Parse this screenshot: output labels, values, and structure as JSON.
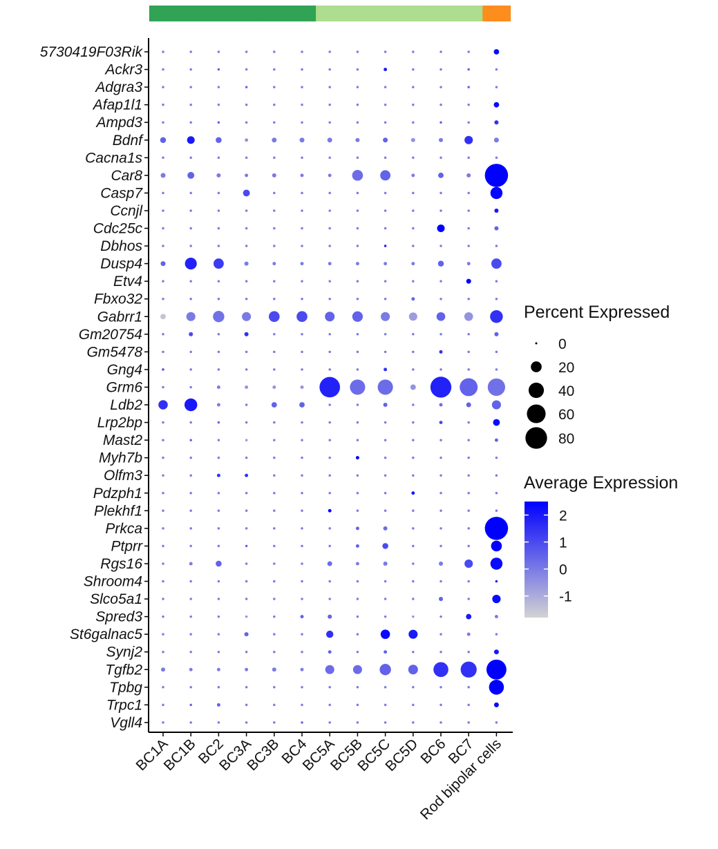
{
  "chart_data": {
    "type": "dotplot",
    "title": "",
    "xlabel": "",
    "ylabel": "",
    "categories": [
      "BC1A",
      "BC1B",
      "BC2",
      "BC3A",
      "BC3B",
      "BC4",
      "BC5A",
      "BC5B",
      "BC5C",
      "BC5D",
      "BC6",
      "BC7",
      "Rod bipolar cells"
    ],
    "genes": [
      "5730419F03Rik",
      "Ackr3",
      "Adgra3",
      "Afap1l1",
      "Ampd3",
      "Bdnf",
      "Cacna1s",
      "Car8",
      "Casp7",
      "Ccnjl",
      "Cdc25c",
      "Dbhos",
      "Dusp4",
      "Etv4",
      "Fbxo32",
      "Gabrr1",
      "Gm20754",
      "Gm5478",
      "Gng4",
      "Grm6",
      "Ldb2",
      "Lrp2bp",
      "Mast2",
      "Myh7b",
      "Olfm3",
      "Pdzph1",
      "Plekhf1",
      "Prkca",
      "Ptprr",
      "Rgs16",
      "Shroom4",
      "Slco5a1",
      "Spred3",
      "St6galnac5",
      "Synj2",
      "Tgfb2",
      "Tpbg",
      "Trpc1",
      "Vgll4"
    ],
    "group_bar": [
      {
        "color": "#31a354",
        "count": 6
      },
      {
        "color": "#addd8e",
        "count": 6
      },
      {
        "color": "#fd8d1c",
        "count": 1
      }
    ],
    "percent_expressed": [
      [
        1,
        1,
        1,
        1,
        1,
        1,
        1,
        1,
        1,
        1,
        1,
        1,
        5
      ],
      [
        1,
        1,
        1,
        1,
        1,
        1,
        1,
        1,
        2,
        1,
        1,
        1,
        1
      ],
      [
        1,
        1,
        1,
        1,
        1,
        1,
        1,
        1,
        1,
        1,
        1,
        1,
        1
      ],
      [
        1,
        1,
        1,
        1,
        1,
        1,
        1,
        1,
        1,
        1,
        1,
        1,
        5
      ],
      [
        1,
        1,
        1,
        1,
        1,
        1,
        1,
        1,
        1,
        1,
        1,
        1,
        3
      ],
      [
        6,
        10,
        6,
        2,
        4,
        4,
        4,
        3,
        4,
        3,
        3,
        12,
        4
      ],
      [
        1,
        1,
        1,
        1,
        1,
        1,
        1,
        1,
        1,
        1,
        1,
        1,
        1
      ],
      [
        4,
        8,
        3,
        2,
        3,
        2,
        2,
        20,
        18,
        2,
        5,
        3,
        92
      ],
      [
        1,
        1,
        1,
        8,
        1,
        1,
        1,
        1,
        1,
        1,
        1,
        1,
        25
      ],
      [
        1,
        1,
        1,
        1,
        1,
        1,
        1,
        1,
        1,
        1,
        1,
        1,
        3
      ],
      [
        1,
        1,
        1,
        1,
        1,
        1,
        1,
        1,
        1,
        1,
        10,
        1,
        3
      ],
      [
        1,
        1,
        1,
        1,
        1,
        1,
        1,
        1,
        1,
        1,
        1,
        1,
        1
      ],
      [
        4,
        24,
        18,
        3,
        2,
        2,
        2,
        2,
        2,
        2,
        6,
        2,
        18
      ],
      [
        1,
        1,
        1,
        1,
        1,
        1,
        1,
        1,
        1,
        1,
        1,
        4,
        1
      ],
      [
        1,
        1,
        1,
        1,
        1,
        1,
        1,
        1,
        1,
        2,
        1,
        1,
        1
      ],
      [
        5,
        14,
        22,
        14,
        20,
        20,
        16,
        19,
        14,
        12,
        13,
        13,
        28
      ],
      [
        1,
        3,
        1,
        3,
        1,
        1,
        1,
        1,
        1,
        1,
        1,
        1,
        3
      ],
      [
        1,
        1,
        1,
        1,
        1,
        1,
        1,
        1,
        1,
        1,
        2,
        1,
        1
      ],
      [
        1,
        1,
        1,
        1,
        1,
        1,
        1,
        1,
        2,
        1,
        1,
        1,
        1
      ],
      [
        1,
        1,
        2,
        2,
        2,
        2,
        72,
        40,
        40,
        5,
        75,
        55,
        52
      ],
      [
        15,
        28,
        2,
        1,
        5,
        5,
        1,
        1,
        3,
        1,
        2,
        4,
        14
      ],
      [
        1,
        1,
        1,
        1,
        1,
        1,
        1,
        1,
        1,
        1,
        2,
        1,
        8
      ],
      [
        1,
        1,
        1,
        1,
        1,
        1,
        1,
        1,
        1,
        1,
        1,
        1,
        2
      ],
      [
        1,
        1,
        1,
        1,
        1,
        1,
        1,
        2,
        1,
        1,
        1,
        1,
        1
      ],
      [
        1,
        1,
        2,
        2,
        1,
        1,
        1,
        1,
        1,
        1,
        1,
        1,
        1
      ],
      [
        1,
        1,
        1,
        1,
        1,
        1,
        1,
        1,
        1,
        2,
        1,
        1,
        1
      ],
      [
        1,
        1,
        1,
        1,
        1,
        1,
        2,
        1,
        1,
        1,
        1,
        1,
        1
      ],
      [
        1,
        1,
        1,
        1,
        1,
        1,
        1,
        2,
        3,
        1,
        1,
        1,
        92
      ],
      [
        1,
        1,
        1,
        1,
        1,
        1,
        1,
        2,
        6,
        1,
        1,
        1,
        20
      ],
      [
        1,
        2,
        6,
        1,
        1,
        1,
        4,
        2,
        3,
        1,
        3,
        12,
        25
      ],
      [
        1,
        1,
        1,
        1,
        1,
        1,
        1,
        1,
        1,
        1,
        1,
        1,
        1
      ],
      [
        1,
        1,
        1,
        1,
        1,
        1,
        1,
        1,
        1,
        1,
        3,
        1,
        12
      ],
      [
        1,
        1,
        1,
        1,
        1,
        2,
        3,
        1,
        1,
        1,
        1,
        5,
        2
      ],
      [
        1,
        1,
        1,
        3,
        1,
        1,
        9,
        1,
        15,
        14,
        1,
        2,
        1
      ],
      [
        1,
        1,
        1,
        1,
        1,
        1,
        2,
        1,
        2,
        1,
        1,
        1,
        4
      ],
      [
        3,
        2,
        2,
        2,
        3,
        2,
        14,
        14,
        22,
        16,
        38,
        44,
        68
      ],
      [
        1,
        1,
        1,
        1,
        1,
        1,
        1,
        1,
        1,
        1,
        1,
        1,
        38
      ],
      [
        1,
        1,
        2,
        1,
        1,
        1,
        1,
        1,
        1,
        1,
        1,
        1,
        4
      ],
      [
        1,
        1,
        1,
        1,
        1,
        1,
        1,
        1,
        1,
        1,
        1,
        1,
        1
      ]
    ],
    "average_expression": [
      [
        0,
        0,
        0,
        0,
        0,
        0,
        0,
        0,
        0,
        0,
        0,
        0,
        2.3
      ],
      [
        0,
        0,
        0.5,
        0,
        0,
        0,
        0,
        0,
        2,
        0,
        0,
        0.5,
        0
      ],
      [
        0,
        0,
        0,
        0.5,
        0,
        0,
        0,
        0,
        0,
        0,
        0,
        0.5,
        0
      ],
      [
        0,
        0,
        0,
        0,
        0,
        0,
        0,
        0,
        0,
        0,
        0,
        0,
        2.3
      ],
      [
        0,
        0,
        0.5,
        0,
        0,
        0,
        0,
        0,
        0,
        0,
        0.5,
        0,
        1.5
      ],
      [
        0.5,
        2,
        0.5,
        -0.5,
        0,
        0,
        0,
        0,
        0.5,
        -0.5,
        0,
        1.5,
        0
      ],
      [
        0,
        0,
        0,
        0,
        0,
        0,
        0,
        0,
        0,
        0,
        0,
        0,
        0
      ],
      [
        0,
        0.5,
        0,
        0,
        0,
        0,
        0,
        0.3,
        0.5,
        0,
        0.5,
        0,
        2.5
      ],
      [
        0,
        0,
        0,
        1,
        0,
        0,
        0,
        0,
        0,
        0,
        0,
        0,
        2.4
      ],
      [
        0,
        0,
        0,
        0,
        0,
        0,
        0,
        0,
        0,
        0,
        0,
        0,
        2
      ],
      [
        0,
        0,
        0,
        0,
        0,
        0,
        0,
        0,
        0,
        0,
        2.5,
        0,
        0.5
      ],
      [
        0,
        0,
        0,
        0,
        0,
        0,
        0,
        0,
        2,
        0,
        0,
        0,
        0
      ],
      [
        0.5,
        1.8,
        1.3,
        0,
        0,
        0,
        0,
        0,
        0,
        0,
        0.5,
        0,
        1
      ],
      [
        0,
        0,
        0,
        0,
        0,
        0,
        0,
        0,
        0,
        0,
        0,
        2.5,
        0
      ],
      [
        0,
        0,
        0,
        0,
        0,
        0,
        0,
        0,
        0,
        0.5,
        0,
        0,
        0
      ],
      [
        -1.5,
        0,
        0.2,
        0,
        1,
        1,
        0.5,
        0.5,
        0,
        -0.7,
        0.5,
        -0.5,
        1.5
      ],
      [
        0,
        1,
        0,
        1.5,
        0,
        0,
        0,
        0,
        0,
        0,
        0,
        0,
        0.5
      ],
      [
        0,
        0,
        0,
        0,
        0,
        0,
        0,
        0,
        0,
        0,
        1.5,
        0,
        0
      ],
      [
        1,
        0,
        0,
        0,
        0,
        0,
        0,
        0,
        1.5,
        0,
        0,
        0,
        0
      ],
      [
        0,
        0,
        0,
        -0.5,
        -0.5,
        -0.5,
        1.8,
        0.3,
        0.3,
        -0.5,
        1.8,
        0.5,
        0.2
      ],
      [
        1.5,
        2,
        0,
        0,
        0.5,
        0.5,
        0,
        0,
        0.5,
        0,
        0.3,
        0.5,
        0.5
      ],
      [
        0,
        0,
        0.5,
        0,
        0,
        0,
        0,
        0,
        0,
        0,
        1,
        0,
        2.3
      ],
      [
        0,
        0.5,
        0,
        -0.5,
        0,
        0,
        0,
        0,
        0,
        0,
        0,
        0,
        0.5
      ],
      [
        0,
        0,
        0,
        0,
        0,
        0,
        0,
        2.5,
        0,
        0,
        0,
        0,
        0
      ],
      [
        0,
        0,
        1.5,
        1.5,
        0,
        0,
        0,
        0,
        0,
        0,
        0,
        0,
        0
      ],
      [
        0,
        0,
        0,
        0,
        0,
        0,
        0,
        0,
        0,
        2,
        0,
        0,
        0
      ],
      [
        0,
        0,
        0,
        0,
        0,
        0,
        2.5,
        0,
        0,
        0,
        0,
        0,
        0
      ],
      [
        0,
        0,
        0,
        0,
        0,
        0,
        0,
        0.5,
        0.3,
        0,
        0,
        0,
        2.5
      ],
      [
        0,
        0,
        0,
        0.5,
        0,
        0,
        0,
        0.5,
        1,
        0,
        0,
        0,
        2.5
      ],
      [
        0,
        0,
        0.5,
        0,
        0,
        0,
        0.3,
        0,
        0,
        0,
        0,
        1,
        2.3
      ],
      [
        0,
        0,
        0,
        0,
        0,
        0,
        0,
        0,
        0,
        0,
        0,
        0,
        2
      ],
      [
        0,
        0,
        0,
        0,
        0,
        0,
        0,
        0,
        0,
        0,
        0.5,
        0,
        2.3
      ],
      [
        0,
        0,
        0,
        -0.5,
        0,
        0.5,
        0.5,
        0,
        0,
        -0.5,
        0,
        2,
        0
      ],
      [
        0,
        0,
        0,
        0.5,
        0,
        0,
        1.5,
        0,
        2.3,
        2,
        0,
        0,
        0
      ],
      [
        0,
        0,
        0,
        0,
        0,
        0,
        0.5,
        0,
        0.5,
        0,
        0,
        0,
        2
      ],
      [
        0,
        0,
        0,
        0,
        0,
        0,
        0.3,
        0.3,
        0.5,
        0.5,
        1.5,
        1.5,
        2.5
      ],
      [
        0,
        0,
        0,
        0,
        0,
        0,
        0,
        0,
        0,
        0,
        0,
        0,
        2.5
      ],
      [
        0,
        0.5,
        0.5,
        0,
        0,
        0,
        0,
        0,
        0,
        0,
        0,
        0,
        2.3
      ],
      [
        0,
        0,
        0,
        0,
        0,
        0.5,
        0,
        0,
        0,
        0,
        0,
        0,
        0
      ]
    ],
    "size_legend": {
      "title": "Percent Expressed",
      "values": [
        0,
        20,
        40,
        60,
        80
      ],
      "labels": [
        "0",
        "20",
        "40",
        "60",
        "80"
      ]
    },
    "color_legend": {
      "title": "Average Expression",
      "ticks": [
        2,
        1,
        0,
        -1
      ],
      "labels": [
        "2",
        "1",
        "0",
        "-1"
      ],
      "range": [
        -1.8,
        2.5
      ],
      "low_color": "#d3d3d3",
      "high_color": "#0000ff"
    },
    "grid": false
  }
}
